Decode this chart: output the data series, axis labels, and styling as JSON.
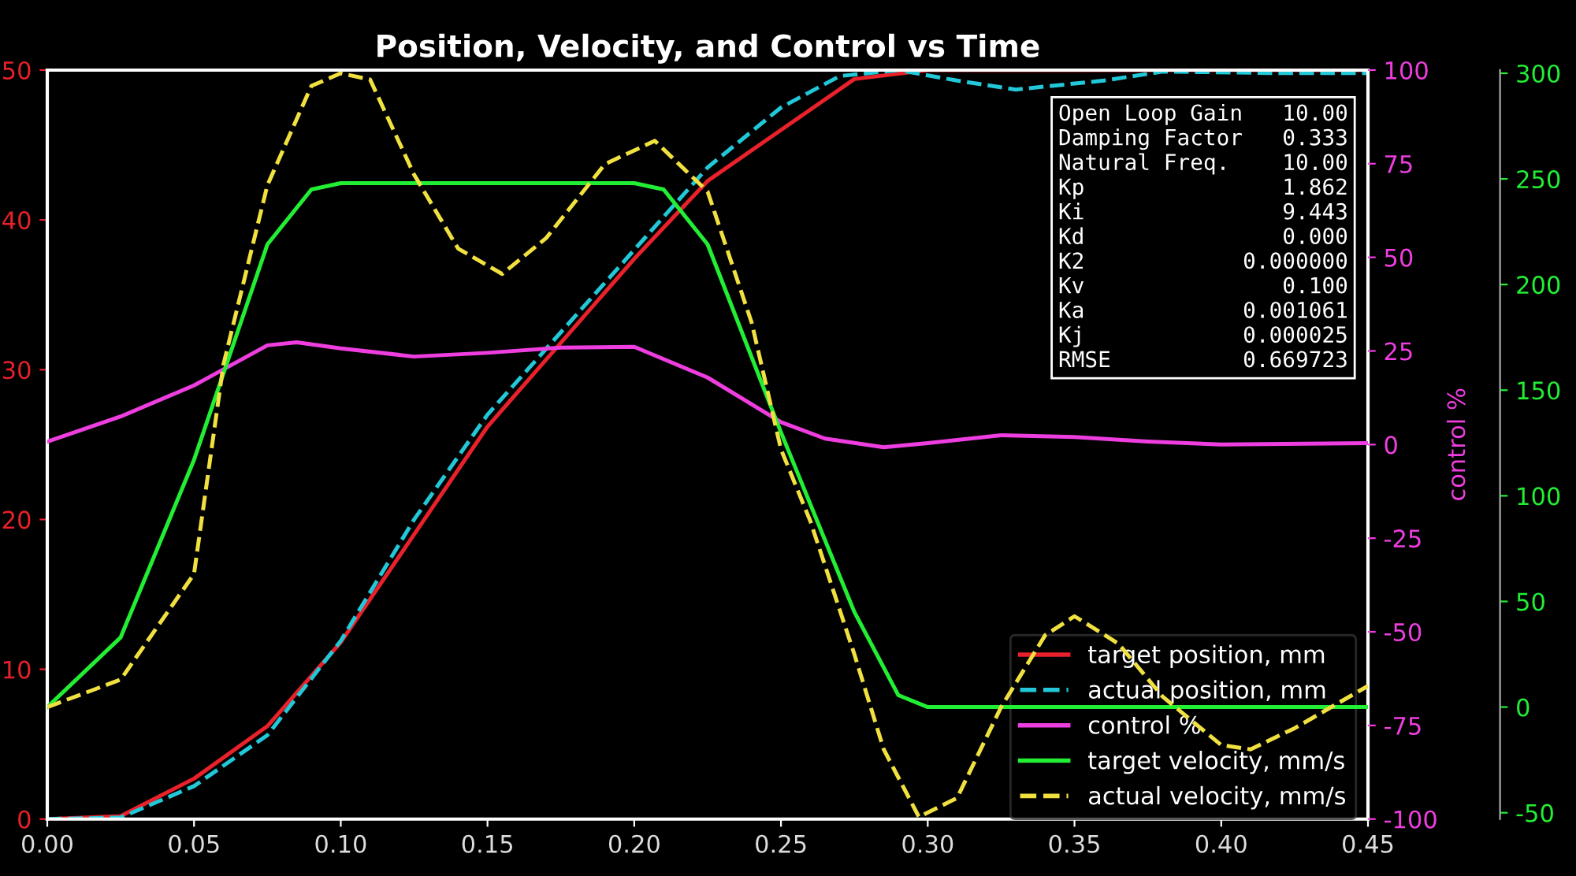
{
  "chart_data": {
    "type": "line",
    "title": "Position, Velocity, and Control vs Time",
    "y2label": "control %",
    "xlim": [
      0,
      0.45
    ],
    "xticks": [
      {
        "value": 0,
        "label": "0.00"
      },
      {
        "value": 0.05,
        "label": "0.05"
      },
      {
        "value": 0.1,
        "label": "0.10"
      },
      {
        "value": 0.15,
        "label": "0.15"
      },
      {
        "value": 0.2,
        "label": "0.20"
      },
      {
        "value": 0.25,
        "label": "0.25"
      },
      {
        "value": 0.3,
        "label": "0.30"
      },
      {
        "value": 0.35,
        "label": "0.35"
      },
      {
        "value": 0.4,
        "label": "0.40"
      },
      {
        "value": 0.45,
        "label": "0.45"
      }
    ],
    "ylim": [
      0,
      50
    ],
    "yticks": [
      0,
      10,
      20,
      30,
      40,
      50
    ],
    "y2lim": [
      -100,
      100
    ],
    "y2ticks": [
      -100,
      -75,
      -50,
      -25,
      0,
      25,
      50,
      75,
      100
    ],
    "y3lim": [
      -53,
      301.5
    ],
    "y3ticks": [
      -50,
      0,
      50,
      100,
      150,
      200,
      250,
      300
    ],
    "legend": "bottom right",
    "grid": false,
    "annotations": [
      "Open Loop Gain   10.00\nDamping Factor   0.333\nNatural Freq.    10.00\nKp               1.862\nKi               9.443\nKd               0.000\nK2            0.000000\nKv               0.100\nKa            0.001061\nKj            0.000025\nRMSE          0.669723"
    ],
    "series": [
      {
        "name": "target position, mm",
        "color": "#e8212a",
        "line_style": "solid",
        "x": [
          0,
          0.025,
          0.05,
          0.075,
          0.1,
          0.125,
          0.15,
          0.175,
          0.2,
          0.225,
          0.25,
          0.275,
          0.3,
          0.35,
          0.4,
          0.45
        ],
        "values": [
          0,
          0.2,
          2.7,
          6.2,
          11.8,
          19,
          26.2,
          31.8,
          37.4,
          42.6,
          46,
          49.4,
          50,
          50,
          50,
          50
        ]
      },
      {
        "name": "actual position, mm",
        "color": "#22c8d8",
        "line_style": "dashed",
        "x": [
          0,
          0.025,
          0.05,
          0.075,
          0.1,
          0.125,
          0.15,
          0.175,
          0.2,
          0.225,
          0.25,
          0.27,
          0.29,
          0.31,
          0.33,
          0.36,
          0.38,
          0.42,
          0.45
        ],
        "values": [
          0,
          0.1,
          2.2,
          5.6,
          11.9,
          20,
          27,
          32.5,
          38,
          43.5,
          47.5,
          49.6,
          50,
          49.3,
          48.7,
          49.3,
          49.9,
          49.8,
          49.8
        ]
      },
      {
        "name": "control %",
        "color": "#ee3ee0",
        "line_style": "solid",
        "axis": "y2",
        "x": [
          0,
          0.025,
          0.05,
          0.075,
          0.085,
          0.1,
          0.125,
          0.15,
          0.175,
          0.2,
          0.225,
          0.25,
          0.265,
          0.285,
          0.3,
          0.325,
          0.35,
          0.375,
          0.4,
          0.45
        ],
        "values": [
          0.8,
          7.5,
          15.8,
          26.5,
          27.3,
          25.7,
          23.5,
          24.5,
          25.9,
          26.1,
          17.9,
          6,
          1.6,
          -0.7,
          0.4,
          2.5,
          2,
          0.8,
          0,
          0.4
        ]
      },
      {
        "name": "target velocity, mm/s",
        "color": "#22ee33",
        "line_style": "solid",
        "axis": "y3",
        "x": [
          0,
          0.025,
          0.05,
          0.075,
          0.09,
          0.1,
          0.2,
          0.21,
          0.225,
          0.25,
          0.275,
          0.29,
          0.3,
          0.45
        ],
        "values": [
          0,
          33,
          117,
          219,
          245,
          248,
          248,
          245,
          219,
          130,
          45,
          5.6,
          0,
          0
        ]
      },
      {
        "name": "actual velocity, mm/s",
        "color": "#f0e040",
        "line_style": "dashed",
        "axis": "y3",
        "x": [
          0,
          0.025,
          0.05,
          0.06,
          0.075,
          0.09,
          0.1,
          0.11,
          0.125,
          0.14,
          0.155,
          0.17,
          0.19,
          0.207,
          0.225,
          0.24,
          0.25,
          0.26,
          0.275,
          0.285,
          0.297,
          0.31,
          0.325,
          0.34,
          0.35,
          0.365,
          0.38,
          0.4,
          0.41,
          0.425,
          0.45
        ],
        "values": [
          0,
          13,
          63,
          162,
          247,
          294,
          300,
          297,
          252,
          217,
          205,
          222,
          257,
          268,
          244,
          182,
          122,
          88,
          25,
          -20,
          -52,
          -43,
          0,
          34,
          43,
          30,
          5,
          -18,
          -20,
          -10,
          10
        ]
      }
    ]
  }
}
